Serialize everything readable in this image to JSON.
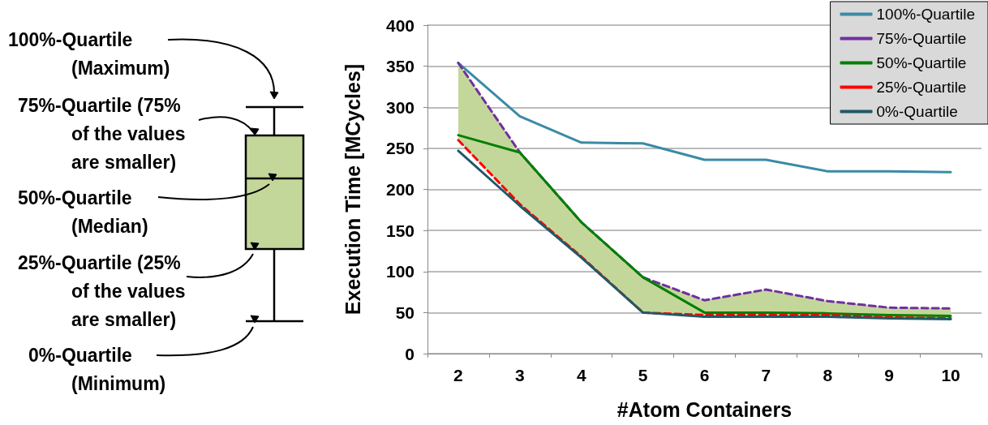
{
  "chart_data": {
    "type": "line",
    "xlabel": "#Atom Containers",
    "ylabel": "Execution Time [MCycles]",
    "categories": [
      "2",
      "3",
      "4",
      "5",
      "6",
      "7",
      "8",
      "9",
      "10"
    ],
    "ylim": [
      0,
      400
    ],
    "yticks": [
      0,
      50,
      100,
      150,
      200,
      250,
      300,
      350,
      400
    ],
    "grid": "y",
    "legend": "top right",
    "marker": "none",
    "series": [
      {
        "name": "100%-Quartile",
        "color": "#3a8ba5",
        "line_style": "solid",
        "values": [
          354,
          289,
          257,
          256,
          236,
          236,
          222,
          222,
          221
        ]
      },
      {
        "name": "75%-Quartile",
        "color": "#7030a0",
        "line_style": "dashed",
        "values": [
          354,
          245,
          160,
          93,
          65,
          78,
          64,
          56,
          55
        ]
      },
      {
        "name": "50%-Quartile",
        "color": "#008000",
        "line_style": "solid",
        "values": [
          266,
          245,
          160,
          93,
          50,
          50,
          49,
          47,
          46
        ],
        "lower": [
          260,
          182,
          118,
          50,
          47,
          47,
          47,
          44,
          43
        ],
        "upper": [
          354,
          245,
          160,
          93,
          65,
          78,
          64,
          56,
          55
        ]
      },
      {
        "name": "25%-Quartile",
        "color": "#ff0000",
        "line_style": "dashed",
        "values": [
          260,
          182,
          118,
          50,
          47,
          47,
          47,
          44,
          43
        ]
      },
      {
        "name": "0%-Quartile",
        "color": "#215968",
        "line_style": "solid",
        "values": [
          247,
          180,
          117,
          50,
          45,
          45,
          45,
          43,
          42
        ]
      }
    ],
    "annotations": [
      "100%-Quartile\n(Maximum)",
      "75%-Quartile (75%\nof the values\nare smaller)",
      "50%-Quartile\n(Median)",
      "25%-Quartile (25%\nof the values\nare smaller)",
      "0%-Quartile\n(Minimum)"
    ]
  }
}
